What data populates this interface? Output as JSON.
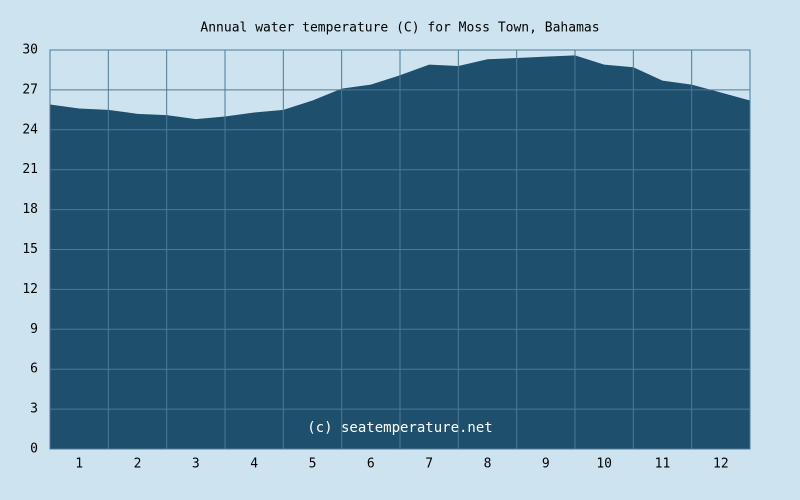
{
  "chart_data": {
    "type": "area",
    "title": "Annual water temperature (C) for Moss Town, Bahamas",
    "annotation": "(c) seatemperature.net",
    "series": [
      {
        "name": "Water temperature",
        "color": "#1e4f6c",
        "x": [
          0.5,
          1,
          1.5,
          2,
          2.5,
          3,
          3.5,
          4,
          4.5,
          5,
          5.5,
          6,
          6.5,
          7,
          7.5,
          8,
          8.5,
          9,
          9.5,
          10,
          10.5,
          11,
          11.5,
          12,
          12.5
        ],
        "values": [
          25.9,
          25.6,
          25.5,
          25.2,
          25.1,
          24.8,
          25.0,
          25.3,
          25.5,
          26.2,
          27.1,
          27.4,
          28.1,
          28.9,
          28.8,
          29.3,
          29.4,
          29.5,
          29.6,
          28.9,
          28.7,
          27.7,
          27.4,
          26.8,
          26.2
        ]
      }
    ],
    "xlim": [
      0.5,
      12.5
    ],
    "xticks": [
      1,
      2,
      3,
      4,
      5,
      6,
      7,
      8,
      9,
      10,
      11,
      12
    ],
    "ylim": [
      0,
      30
    ],
    "yticks": [
      0,
      3,
      6,
      9,
      12,
      15,
      18,
      21,
      24,
      27,
      30
    ],
    "grid": true
  }
}
